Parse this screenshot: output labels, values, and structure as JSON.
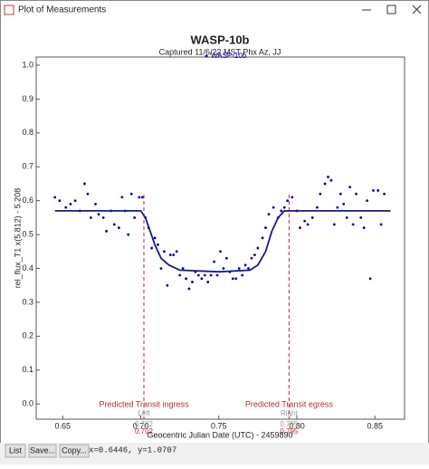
{
  "window": {
    "title": "Plot of Measurements",
    "buttons": [
      "List",
      "Save...",
      "Copy..."
    ],
    "status": "x=0.6446, y=1.0707"
  },
  "chart_data": {
    "type": "scatter",
    "title": "WASP-10b",
    "subtitle": "Captured 11/6/22 MST Phx Az, JJ",
    "x_label": "Geocentric Julian Date (UTC) - 2459890",
    "y_label": "rel_flux_T1 x(5.812) - 5.208",
    "xlim": [
      0.633,
      0.869
    ],
    "ylim": [
      -0.045,
      1.024
    ],
    "xticks": [
      0.65,
      {
        "value": 0.7,
        "label": "0.70"
      },
      0.75,
      {
        "value": 0.8,
        "label": "0.80"
      },
      0.85
    ],
    "yticks": [
      {
        "value": 0,
        "label": "0.0"
      },
      0.1,
      0.2,
      0.3,
      0.4,
      0.5,
      0.6,
      0.7,
      0.8,
      0.9,
      {
        "value": 1,
        "label": "1.0"
      }
    ],
    "legend": "top",
    "series": [
      {
        "name": "WASP-10b",
        "color": "#0000aa",
        "x": [
          0.645,
          0.648,
          0.652,
          0.655,
          0.658,
          0.661,
          0.664,
          0.666,
          0.668,
          0.671,
          0.673,
          0.676,
          0.678,
          0.681,
          0.683,
          0.686,
          0.688,
          0.69,
          0.692,
          0.694,
          0.696,
          0.699,
          0.701,
          0.703,
          0.705,
          0.707,
          0.709,
          0.711,
          0.713,
          0.715,
          0.717,
          0.719,
          0.721,
          0.723,
          0.725,
          0.727,
          0.729,
          0.731,
          0.733,
          0.735,
          0.737,
          0.739,
          0.741,
          0.743,
          0.745,
          0.747,
          0.749,
          0.751,
          0.753,
          0.755,
          0.757,
          0.759,
          0.761,
          0.763,
          0.765,
          0.767,
          0.769,
          0.771,
          0.773,
          0.775,
          0.778,
          0.78,
          0.782,
          0.785,
          0.788,
          0.79,
          0.792,
          0.794,
          0.797,
          0.8,
          0.802,
          0.805,
          0.807,
          0.81,
          0.813,
          0.815,
          0.818,
          0.82,
          0.822,
          0.824,
          0.826,
          0.828,
          0.83,
          0.832,
          0.834,
          0.836,
          0.838,
          0.841,
          0.843,
          0.845,
          0.847,
          0.849,
          0.852,
          0.854,
          0.856
        ],
        "values": [
          0.61,
          0.6,
          0.58,
          0.59,
          0.6,
          0.57,
          0.65,
          0.62,
          0.55,
          0.59,
          0.56,
          0.55,
          0.51,
          0.57,
          0.53,
          0.52,
          0.61,
          0.57,
          0.5,
          0.62,
          0.55,
          0.61,
          0.61,
          0.55,
          0.52,
          0.46,
          0.49,
          0.47,
          0.4,
          0.45,
          0.35,
          0.44,
          0.44,
          0.45,
          0.38,
          0.4,
          0.37,
          0.34,
          0.36,
          0.39,
          0.38,
          0.37,
          0.38,
          0.36,
          0.38,
          0.42,
          0.38,
          0.45,
          0.4,
          0.43,
          0.39,
          0.37,
          0.37,
          0.4,
          0.38,
          0.41,
          0.4,
          0.43,
          0.44,
          0.46,
          0.49,
          0.52,
          0.56,
          0.58,
          0.55,
          0.57,
          0.58,
          0.6,
          0.61,
          0.57,
          0.52,
          0.54,
          0.53,
          0.55,
          0.58,
          0.62,
          0.65,
          0.67,
          0.66,
          0.53,
          0.58,
          0.62,
          0.59,
          0.55,
          0.64,
          0.53,
          0.62,
          0.55,
          0.52,
          0.6,
          0.37,
          0.63,
          0.63,
          0.53,
          0.62
        ]
      },
      {
        "color": "#1a1a8c",
        "style": "line",
        "x": [
          0.645,
          0.7,
          0.703,
          0.706,
          0.709,
          0.713,
          0.718,
          0.725,
          0.75,
          0.77,
          0.775,
          0.78,
          0.784,
          0.788,
          0.792,
          0.795,
          0.86
        ],
        "values": [
          0.57,
          0.57,
          0.55,
          0.51,
          0.47,
          0.43,
          0.41,
          0.395,
          0.39,
          0.395,
          0.41,
          0.45,
          0.51,
          0.55,
          0.57,
          0.57,
          0.57
        ]
      }
    ],
    "markers": [
      {
        "label": "Predicted Transit ingress",
        "side": "Left",
        "value": 0.702,
        "color": "#b03030"
      },
      {
        "label": "Predicted Transit egress",
        "side": "Right",
        "value": 0.795,
        "color": "#b03030"
      }
    ]
  }
}
